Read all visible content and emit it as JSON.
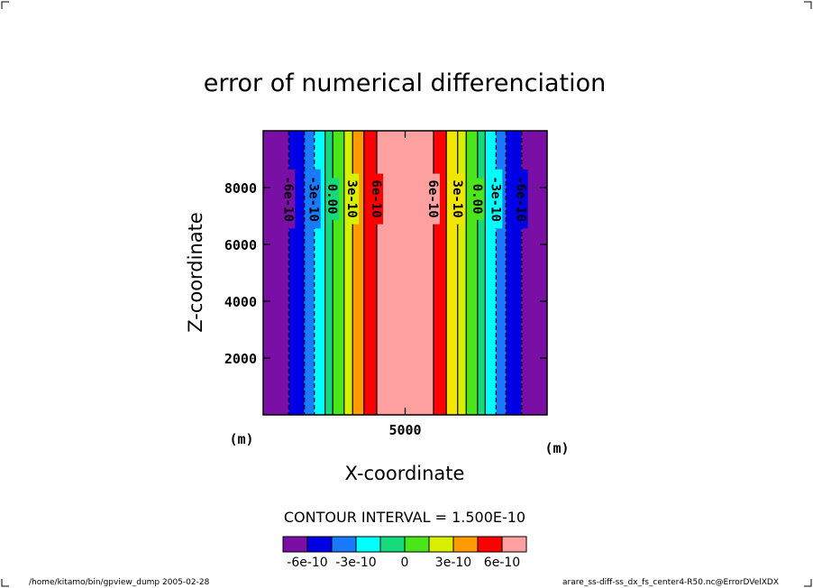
{
  "chart_data": {
    "type": "heatmap",
    "title": "error of numerical differenciation",
    "xlabel": "X-coordinate",
    "ylabel": "Z-coordinate",
    "x_unit": "(m)",
    "y_unit": "(m)",
    "xlim": [
      0,
      10000
    ],
    "ylim": [
      0,
      10000
    ],
    "x_ticks": [
      5000
    ],
    "y_ticks": [
      2000,
      4000,
      6000,
      8000
    ],
    "contour_interval_text": "CONTOUR INTERVAL = 1.500E-10",
    "band_colors": [
      "#7a0fa6",
      "#0000e6",
      "#1a7aff",
      "#00ffff",
      "#15d97a",
      "#4ae61a",
      "#d8f000",
      "#f2e600",
      "#ff9a00",
      "#ff0000",
      "#ffa0a0"
    ],
    "bands": [
      {
        "x0": 0,
        "x1": 900,
        "c": 0
      },
      {
        "x0": 900,
        "x1": 1450,
        "c": 1
      },
      {
        "x0": 1450,
        "x1": 1800,
        "c": 2
      },
      {
        "x0": 1800,
        "x1": 2180,
        "c": 3
      },
      {
        "x0": 2180,
        "x1": 2450,
        "c": 4
      },
      {
        "x0": 2450,
        "x1": 2850,
        "c": 5
      },
      {
        "x0": 2850,
        "x1": 3150,
        "c": 6
      },
      {
        "x0": 3150,
        "x1": 3550,
        "c": 8
      },
      {
        "x0": 3550,
        "x1": 4000,
        "c": 9
      },
      {
        "x0": 4000,
        "x1": 6000,
        "c": 10
      },
      {
        "x0": 6000,
        "x1": 6450,
        "c": 9
      },
      {
        "x0": 6450,
        "x1": 6850,
        "c": 7
      },
      {
        "x0": 6850,
        "x1": 7150,
        "c": 6
      },
      {
        "x0": 7150,
        "x1": 7550,
        "c": 5
      },
      {
        "x0": 7550,
        "x1": 7820,
        "c": 4
      },
      {
        "x0": 7820,
        "x1": 8200,
        "c": 3
      },
      {
        "x0": 8200,
        "x1": 8550,
        "c": 2
      },
      {
        "x0": 8550,
        "x1": 9100,
        "c": 1
      },
      {
        "x0": 9100,
        "x1": 10000,
        "c": 0
      }
    ],
    "contours": [
      {
        "x": 900,
        "dashed": true,
        "label": "-6e-10"
      },
      {
        "x": 1800,
        "dashed": true,
        "label": "-3e-10"
      },
      {
        "x": 2450,
        "dashed": false,
        "label": "0.00"
      },
      {
        "x": 3150,
        "dashed": false,
        "label": "3e-10"
      },
      {
        "x": 4000,
        "dashed": false,
        "label": "6e-10"
      },
      {
        "x": 6000,
        "dashed": false,
        "label": "6e-10"
      },
      {
        "x": 6850,
        "dashed": false,
        "label": "3e-10"
      },
      {
        "x": 7550,
        "dashed": false,
        "label": "0.00"
      },
      {
        "x": 8200,
        "dashed": true,
        "label": "-3e-10"
      },
      {
        "x": 9100,
        "dashed": true,
        "label": "-6e-10"
      }
    ],
    "extra_lines": [
      {
        "x": 1450,
        "dashed": true
      },
      {
        "x": 2180,
        "dashed": false
      },
      {
        "x": 2850,
        "dashed": false
      },
      {
        "x": 3550,
        "dashed": false
      },
      {
        "x": 6450,
        "dashed": false
      },
      {
        "x": 7150,
        "dashed": false
      },
      {
        "x": 7820,
        "dashed": false
      },
      {
        "x": 8550,
        "dashed": true
      }
    ],
    "colorbar": {
      "colors": [
        "#7a0fa6",
        "#0000e6",
        "#1a7aff",
        "#00ffff",
        "#15d97a",
        "#4ae61a",
        "#d8f000",
        "#ff9a00",
        "#ff0000",
        "#ffa0a0"
      ],
      "labels": [
        "-6e-10",
        "-3e-10",
        "0",
        "3e-10",
        "6e-10"
      ]
    }
  },
  "footer": {
    "left": "/home/kitamo/bin/gpview_dump  2005-02-28",
    "right": "arare_ss-diff-ss_dx_fs_center4-R50.nc@ErrorDVelXDX"
  }
}
